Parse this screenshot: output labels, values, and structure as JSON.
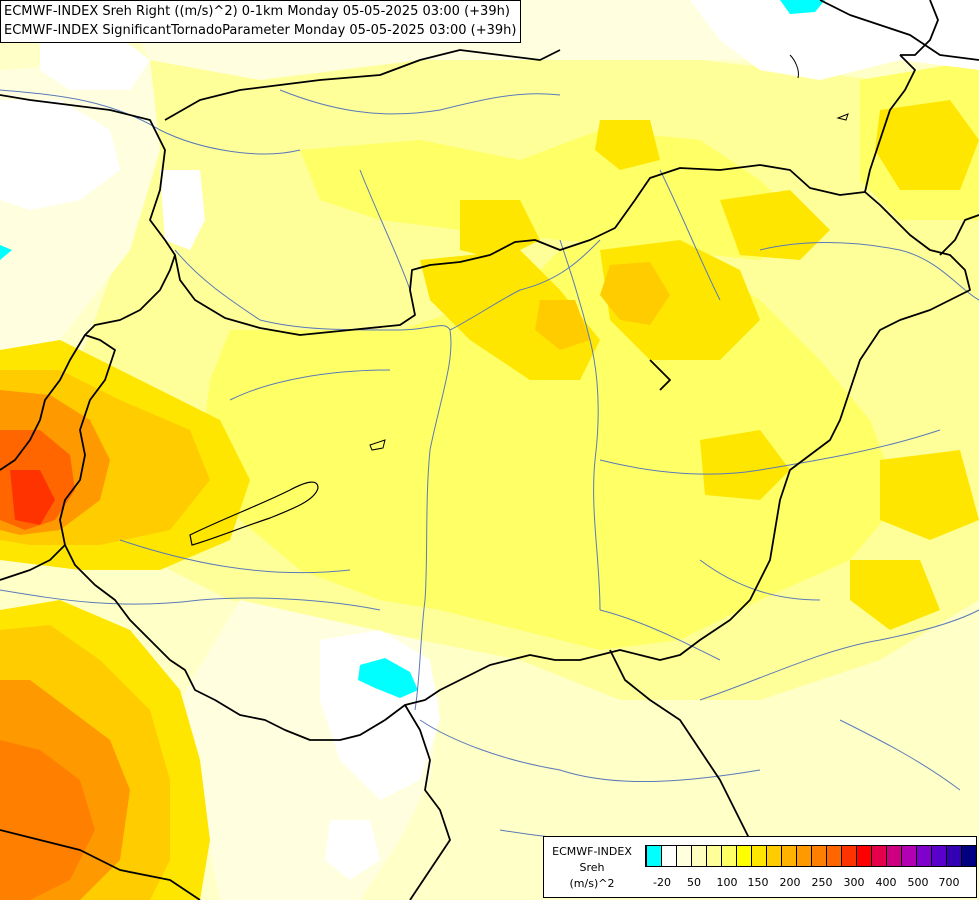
{
  "title": {
    "line1": "ECMWF-INDEX Sreh Right ((m/s)^2) 0-1km Monday 05-05-2025 03:00 (+39h)",
    "line2": "ECMWF-INDEX SignificantTornadoParameter Monday 05-05-2025 03:00 (+39h)"
  },
  "legend": {
    "label_line1": "ECMWF-INDEX",
    "label_line2": "Sreh",
    "label_line3": "(m/s)^2",
    "ticks": [
      "-20",
      "50",
      "100",
      "150",
      "200",
      "250",
      "300",
      "400",
      "500",
      "700"
    ],
    "colors": [
      "#00ffff",
      "#ffffff",
      "#ffffe0",
      "#ffffc0",
      "#ffff99",
      "#ffff66",
      "#ffff00",
      "#ffe600",
      "#ffcc00",
      "#ffb300",
      "#ff9900",
      "#ff8000",
      "#ff6600",
      "#ff3300",
      "#ff0000",
      "#e6004c",
      "#cc0080",
      "#b300b3",
      "#8000cc",
      "#5900cc",
      "#3300b3",
      "#000080"
    ]
  },
  "colors": {
    "background": "#ffffc8",
    "cyan": "#00ffff",
    "border": "#000000",
    "river": "#5a7ab8"
  }
}
